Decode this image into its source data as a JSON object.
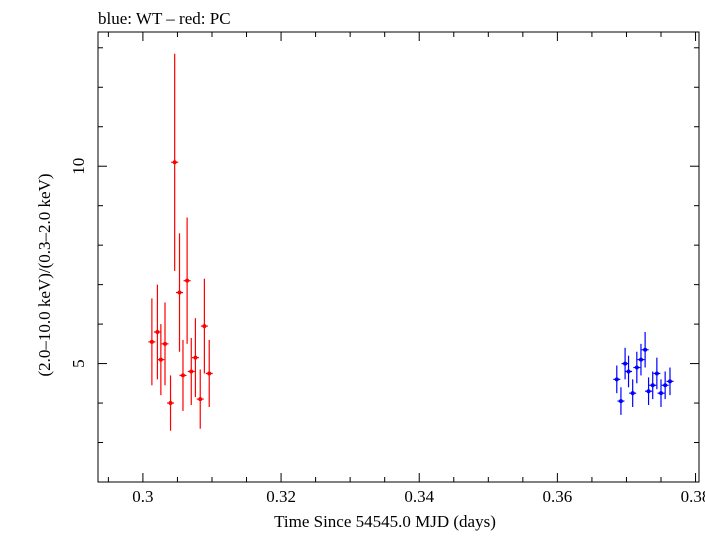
{
  "chart_data": {
    "type": "scatter",
    "title": "blue: WT – red: PC",
    "xlabel": "Time Since 54545.0 MJD (days)",
    "ylabel": "(2.0–10.0 keV)/(0.3–2.0 keV)",
    "xlim": [
      0.2935,
      0.3805
    ],
    "ylim": [
      2.0,
      13.4
    ],
    "xticks": [
      0.3,
      0.32,
      0.34,
      0.36,
      0.38
    ],
    "xtick_labels": [
      "0.3",
      "0.32",
      "0.34",
      "0.36",
      "0.38"
    ],
    "yticks": [
      5,
      10
    ],
    "ytick_labels": [
      "5",
      "10"
    ],
    "grid": false,
    "series": [
      {
        "name": "PC",
        "color": "#ff0000",
        "x": [
          0.3013,
          0.3021,
          0.3026,
          0.3032,
          0.304,
          0.3046,
          0.3053,
          0.3058,
          0.3064,
          0.307,
          0.3076,
          0.3083,
          0.3089,
          0.3096
        ],
        "y": [
          5.55,
          5.8,
          5.1,
          5.5,
          4.0,
          10.1,
          6.8,
          4.7,
          7.1,
          4.8,
          5.15,
          4.1,
          5.95,
          4.75
        ],
        "err": [
          1.1,
          1.2,
          0.9,
          1.05,
          0.7,
          2.75,
          1.5,
          0.9,
          1.6,
          0.85,
          1.0,
          0.75,
          1.2,
          0.85
        ]
      },
      {
        "name": "WT",
        "color": "#0000ff",
        "x": [
          0.3686,
          0.3692,
          0.3698,
          0.3703,
          0.3709,
          0.3715,
          0.3721,
          0.3727,
          0.3732,
          0.3738,
          0.3744,
          0.375,
          0.3756,
          0.3763
        ],
        "y": [
          4.6,
          4.05,
          5.0,
          4.8,
          4.25,
          4.9,
          5.1,
          5.35,
          4.3,
          4.45,
          4.75,
          4.25,
          4.45,
          4.55
        ],
        "err": [
          0.35,
          0.35,
          0.4,
          0.4,
          0.35,
          0.4,
          0.4,
          0.45,
          0.35,
          0.35,
          0.4,
          0.35,
          0.35,
          0.35
        ]
      }
    ]
  }
}
